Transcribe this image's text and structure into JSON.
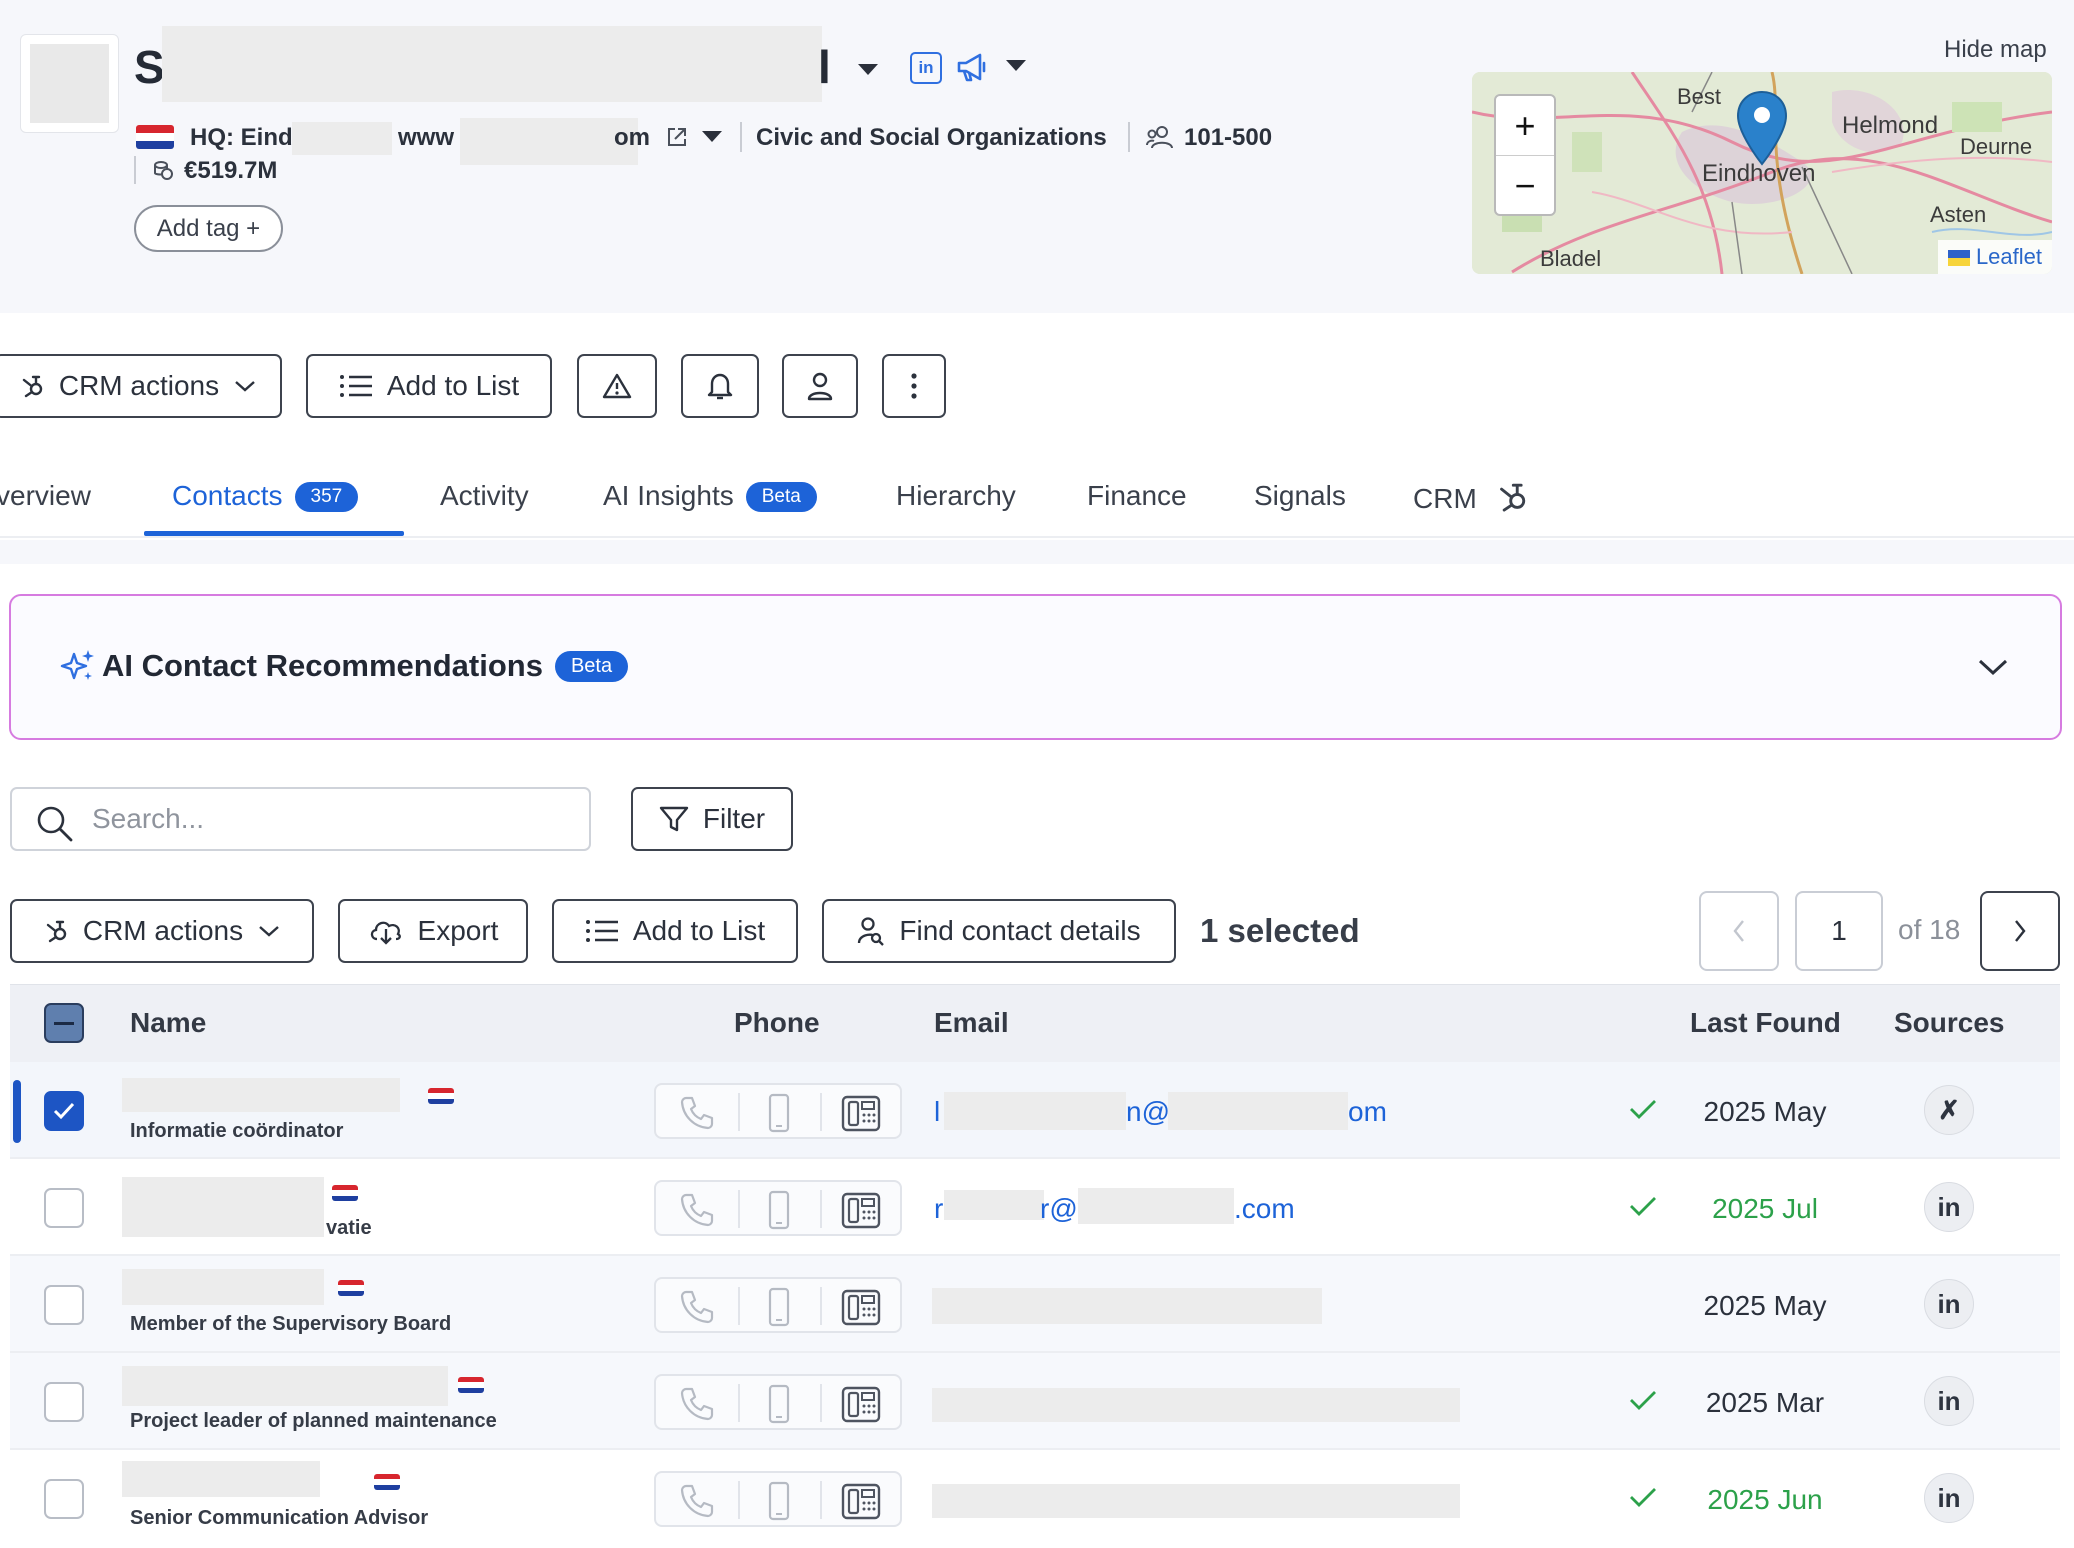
{
  "company": {
    "name_visible_prefix": "S",
    "name_visible_suffix": "l",
    "hq": "HQ: Eind",
    "website_prefix": "www",
    "website_suffix": "om",
    "industry": "Civic and Social Organizations",
    "employees": "101-500",
    "revenue": "€519.7M",
    "add_tag_label": "Add tag +"
  },
  "map": {
    "toggle_label": "Hide map",
    "labels": [
      "Best",
      "Helmond",
      "Deurne",
      "Eindhoven",
      "Asten",
      "Bladel"
    ],
    "zoom_in": "+",
    "zoom_out": "−",
    "attribution": "Leaflet"
  },
  "toolbar": {
    "crm_actions": "CRM actions",
    "add_to_list": "Add to List"
  },
  "tabs": [
    {
      "label": "verview"
    },
    {
      "label": "Contacts",
      "badge": "357",
      "active": true
    },
    {
      "label": "Activity"
    },
    {
      "label": "AI Insights",
      "badge": "Beta"
    },
    {
      "label": "Hierarchy"
    },
    {
      "label": "Finance"
    },
    {
      "label": "Signals"
    },
    {
      "label": "CRM"
    }
  ],
  "ai_panel": {
    "title": "AI Contact Recommendations",
    "badge": "Beta"
  },
  "search": {
    "placeholder": "Search...",
    "filter_label": "Filter"
  },
  "table_toolbar": {
    "crm_actions": "CRM actions",
    "export": "Export",
    "add_to_list": "Add to List",
    "find_contact_details": "Find contact details",
    "selected": "1 selected"
  },
  "pagination": {
    "current_page": "1",
    "of_label": "of 18"
  },
  "columns": {
    "name": "Name",
    "phone": "Phone",
    "email": "Email",
    "last_found": "Last Found",
    "sources": "Sources"
  },
  "rows": [
    {
      "title": "Informatie coördinator",
      "email_a": "l",
      "email_b": "n@",
      "email_c": "om",
      "verified": true,
      "last_found": "2025 May",
      "last_found_color": "#2b313c",
      "source": "xing-icon",
      "checked": true
    },
    {
      "title": "vatie",
      "email_a": "r",
      "email_b": "r@v",
      "email_c": ".com",
      "verified": true,
      "last_found": "2025 Jul",
      "last_found_color": "#2ca14a",
      "source": "linkedin-icon",
      "checked": false
    },
    {
      "title": "Member of the Supervisory Board",
      "verified": false,
      "last_found": "2025 May",
      "last_found_color": "#2b313c",
      "source": "linkedin-icon",
      "checked": false
    },
    {
      "title": "Project leader of planned maintenance",
      "verified": true,
      "last_found": "2025 Mar",
      "last_found_color": "#2b313c",
      "source": "linkedin-icon",
      "checked": false
    },
    {
      "title": "Senior Communication Advisor",
      "verified": true,
      "last_found": "2025 Jun",
      "last_found_color": "#2ca14a",
      "source": "linkedin-icon",
      "checked": false
    }
  ],
  "source_glyphs": {
    "linkedin": "in",
    "xing": "✗"
  },
  "colors": {
    "accent": "#1d63d8",
    "found_green": "#2ca14a",
    "ai_border": "#d67be0"
  }
}
